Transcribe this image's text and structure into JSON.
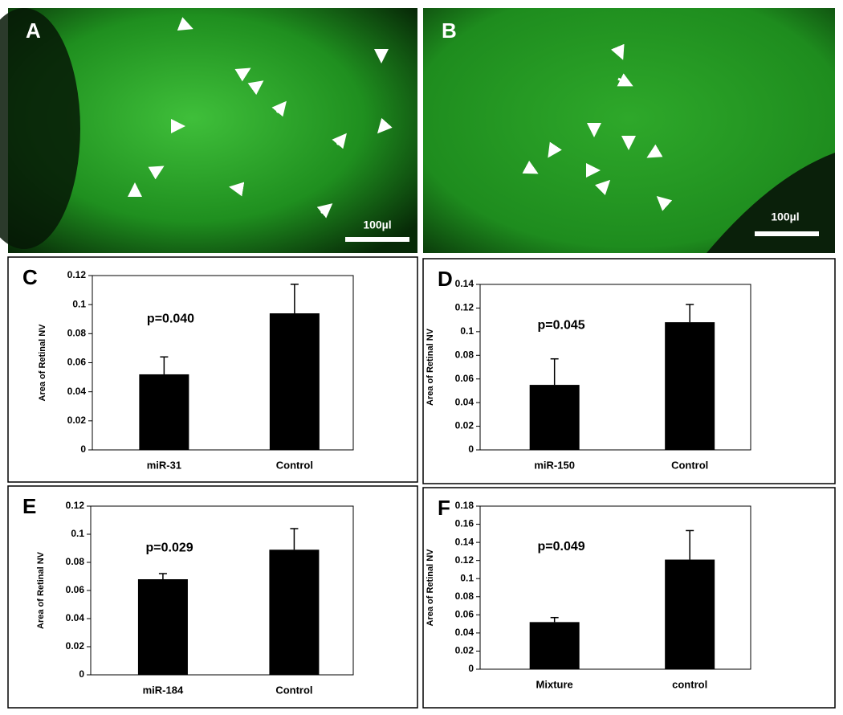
{
  "images": [
    {
      "label": "A",
      "scale_bar": "100µl"
    },
    {
      "label": "B",
      "scale_bar": "100µl"
    }
  ],
  "chart_data": [
    {
      "type": "bar",
      "panel_label": "C",
      "ylabel": "Area of Retinal NV",
      "annotation": "p=0.040",
      "categories": [
        "miR-31",
        "Control"
      ],
      "values": [
        0.052,
        0.094
      ],
      "errors": [
        0.012,
        0.02
      ],
      "color": "#000000",
      "ylim": [
        0,
        0.12
      ],
      "yticks": [
        0,
        0.02,
        0.04,
        0.06,
        0.08,
        0.1,
        0.12
      ]
    },
    {
      "type": "bar",
      "panel_label": "D",
      "ylabel": "Area of Retinal NV",
      "annotation": "p=0.045",
      "categories": [
        "miR-150",
        "Control"
      ],
      "values": [
        0.055,
        0.108
      ],
      "errors": [
        0.022,
        0.015
      ],
      "color": "#000000",
      "ylim": [
        0,
        0.14
      ],
      "yticks": [
        0,
        0.02,
        0.04,
        0.06,
        0.08,
        0.1,
        0.12,
        0.14
      ]
    },
    {
      "type": "bar",
      "panel_label": "E",
      "ylabel": "Area of Retinal NV",
      "annotation": "p=0.029",
      "categories": [
        "miR-184",
        "Control"
      ],
      "values": [
        0.068,
        0.089
      ],
      "errors": [
        0.004,
        0.015
      ],
      "color": "#000000",
      "ylim": [
        0,
        0.12
      ],
      "yticks": [
        0,
        0.02,
        0.04,
        0.06,
        0.08,
        0.1,
        0.12
      ]
    },
    {
      "type": "bar",
      "panel_label": "F",
      "ylabel": "Area of Retinal NV",
      "annotation": "p=0.049",
      "categories": [
        "Mixture",
        "control"
      ],
      "values": [
        0.052,
        0.121
      ],
      "errors": [
        0.005,
        0.032
      ],
      "color": "#000000",
      "ylim": [
        0,
        0.18
      ],
      "yticks": [
        0,
        0.02,
        0.04,
        0.06,
        0.08,
        0.1,
        0.12,
        0.14,
        0.16,
        0.18
      ]
    }
  ]
}
